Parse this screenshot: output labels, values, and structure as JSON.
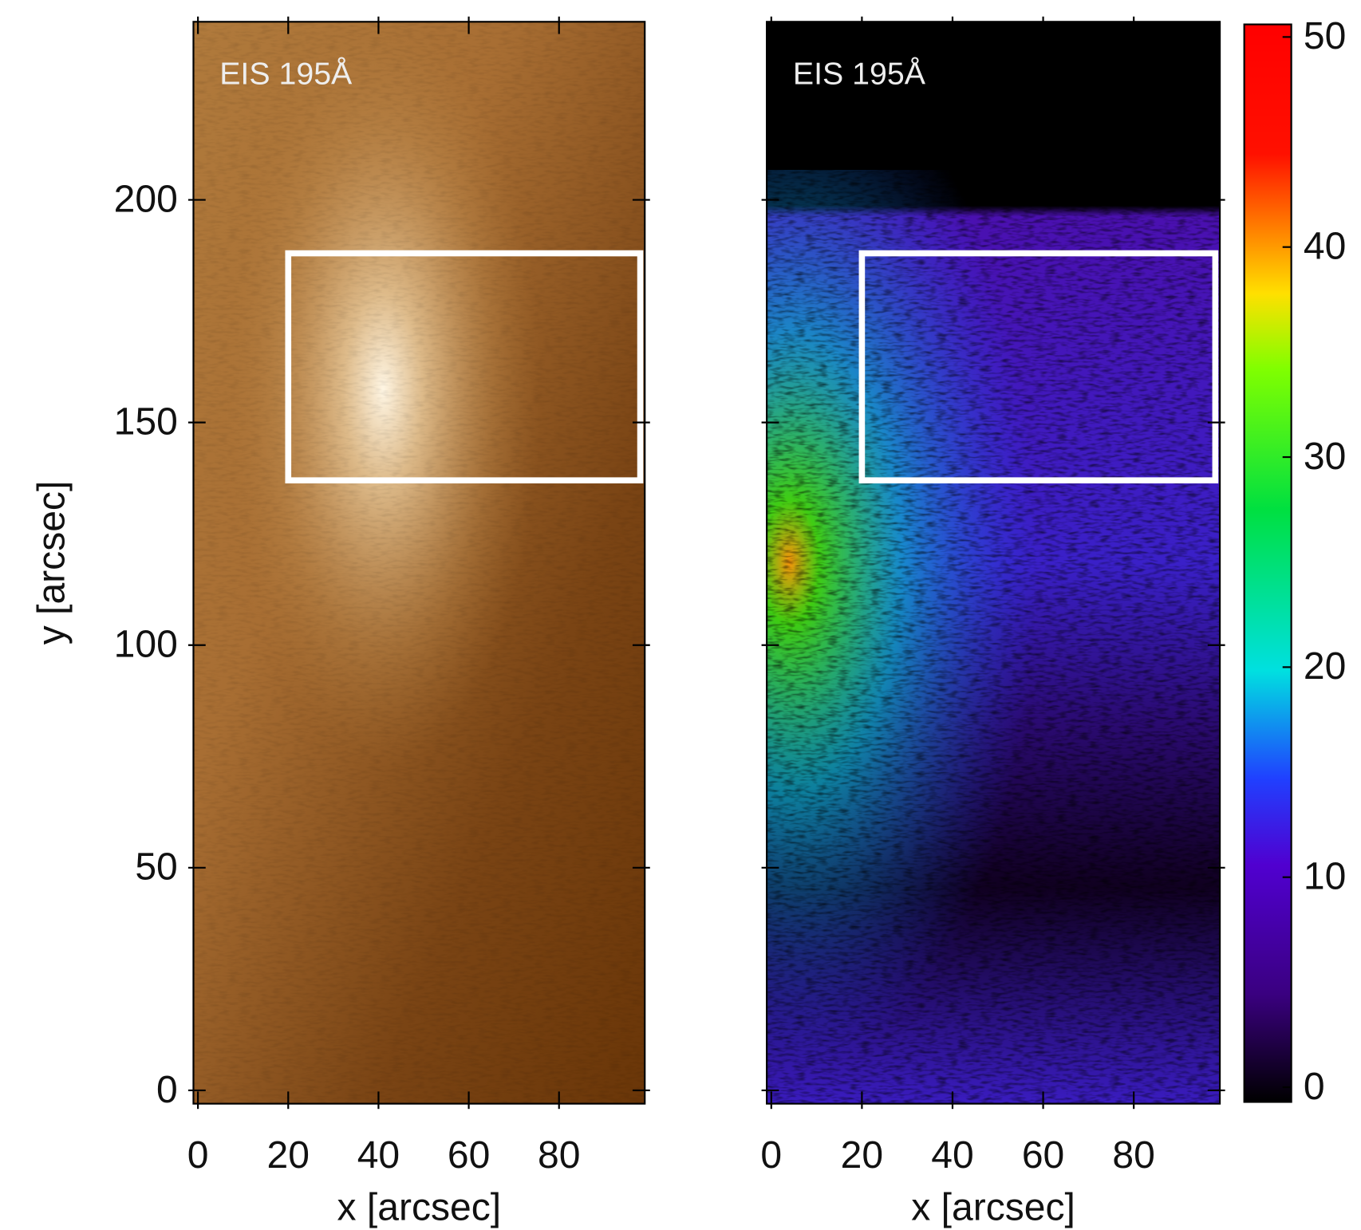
{
  "chart_data": [
    {
      "type": "image",
      "annotation": "EIS 195Å",
      "xlabel": "x [arcsec]",
      "ylabel": "y [arcsec]",
      "xlim": [
        -1,
        99
      ],
      "ylim": [
        -3,
        240
      ],
      "xticks": [
        0,
        20,
        40,
        60,
        80
      ],
      "yticks": [
        0,
        50,
        100,
        150,
        200
      ],
      "show_ytick_labels": true,
      "box": {
        "x": [
          20,
          98
        ],
        "y": [
          137,
          188
        ]
      },
      "colormap": "brown"
    },
    {
      "type": "image",
      "annotation": "EIS 195Å",
      "xlabel": "x [arcsec]",
      "xlim": [
        -1,
        99
      ],
      "ylim": [
        -3,
        240
      ],
      "xticks": [
        0,
        20,
        40,
        60,
        80
      ],
      "yticks": [
        0,
        50,
        100,
        150,
        200
      ],
      "show_ytick_labels": false,
      "box": {
        "x": [
          20,
          98
        ],
        "y": [
          137,
          188
        ]
      },
      "colormap": "rainbow",
      "colorbar": {
        "lim": [
          -0.7,
          50.6
        ],
        "ticks": [
          0,
          10,
          20,
          30,
          40,
          50
        ]
      }
    }
  ]
}
